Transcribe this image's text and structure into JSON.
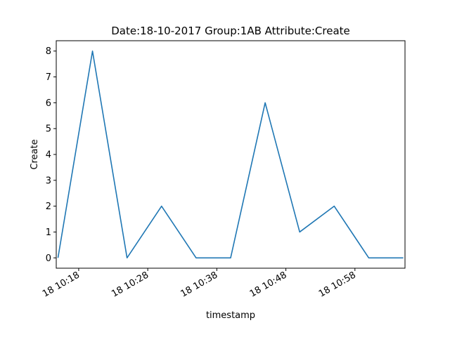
{
  "chart_data": {
    "type": "line",
    "title": "Date:18-10-2017  Group:1AB Attribute:Create",
    "xlabel": "timestamp",
    "ylabel": "Create",
    "x_tick_labels": [
      "18 10:18",
      "18 10:28",
      "18 10:38",
      "18 10:48",
      "18 10:58"
    ],
    "x_tick_times": [
      "10:18",
      "10:28",
      "10:38",
      "10:48",
      "10:58"
    ],
    "y_ticks": [
      0,
      1,
      2,
      3,
      4,
      5,
      6,
      7,
      8
    ],
    "ylim": [
      -0.4,
      8.4
    ],
    "xlim": [
      "10:14:45",
      "10:65:15"
    ],
    "grid": false,
    "series": [
      {
        "color": "#1f77b4",
        "x": [
          "10:15",
          "10:20",
          "10:25",
          "10:30",
          "10:35",
          "10:40",
          "10:45",
          "10:50",
          "10:55",
          "11:00",
          "11:05"
        ],
        "values": [
          0,
          8,
          0,
          2,
          0,
          0,
          6,
          1,
          2,
          0,
          0
        ]
      }
    ]
  }
}
